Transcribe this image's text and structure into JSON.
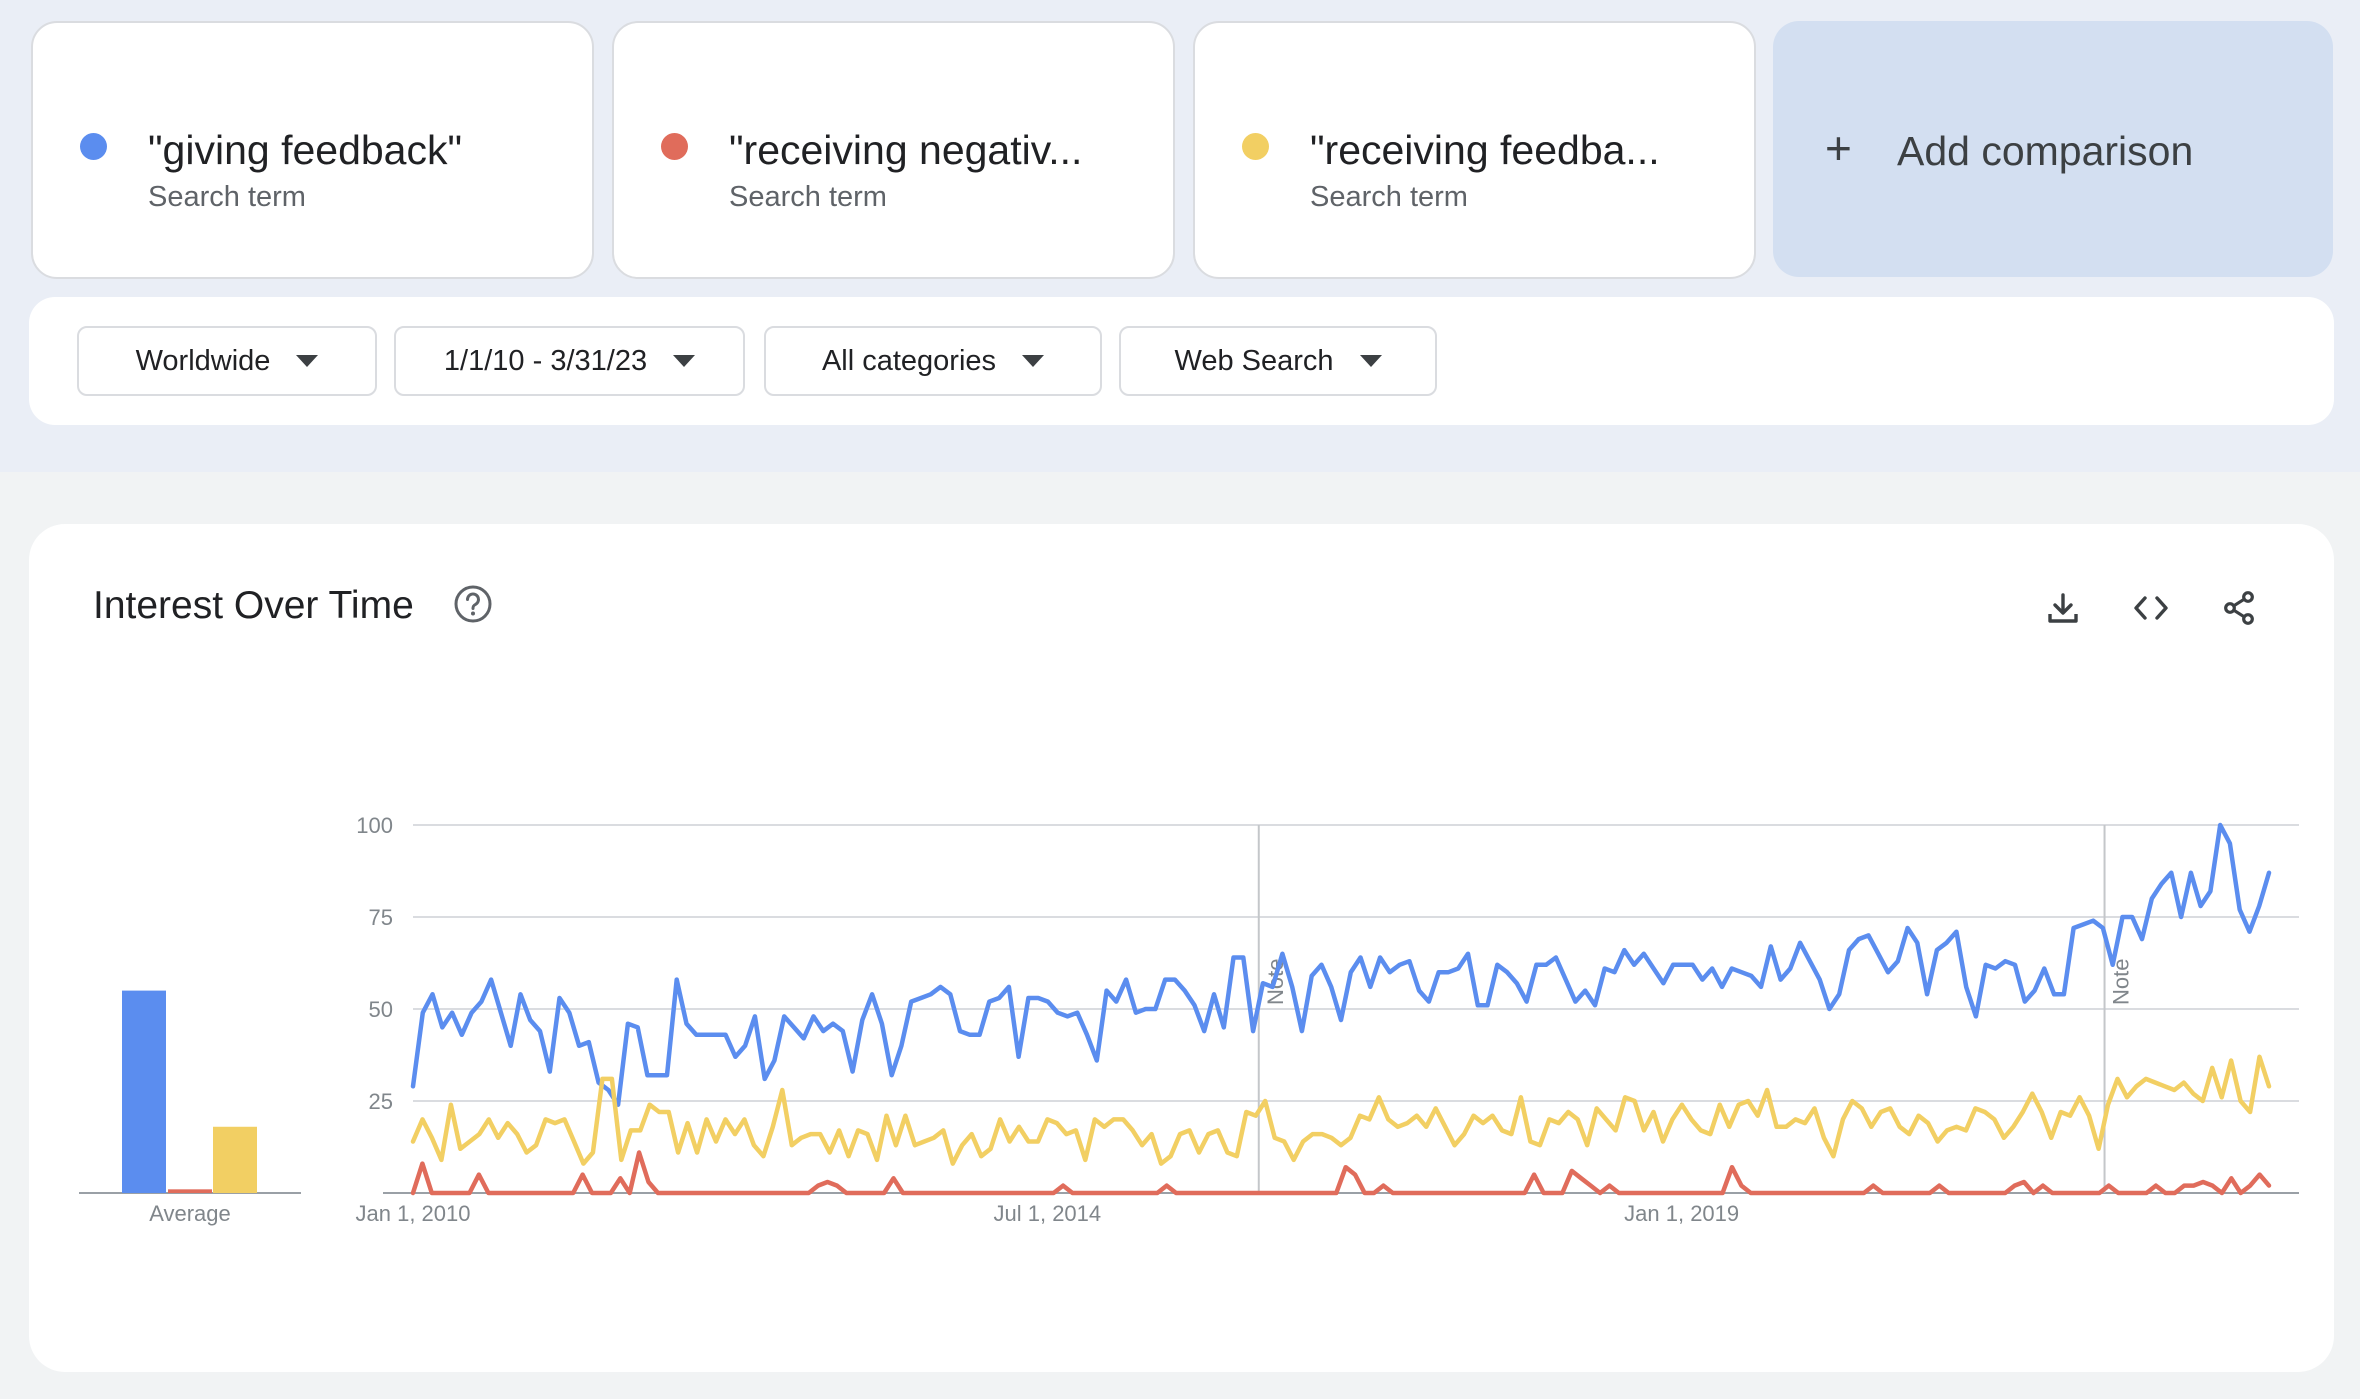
{
  "terms": [
    {
      "name": "\"giving feedback\"",
      "subtitle": "Search term",
      "color": "#5b8def"
    },
    {
      "name": "\"receiving negativ...",
      "subtitle": "Search term",
      "color": "#e06c5b"
    },
    {
      "name": "\"receiving feedba...",
      "subtitle": "Search term",
      "color": "#f2cf63"
    }
  ],
  "add_comparison": {
    "icon": "plus-icon",
    "label": "Add comparison"
  },
  "filters": {
    "region": "Worldwide",
    "date_range": "1/1/10 - 3/31/23",
    "category": "All categories",
    "search_type": "Web Search"
  },
  "panel": {
    "title": "Interest Over Time",
    "help_icon": "help-circle-icon",
    "tools": [
      "download-icon",
      "embed-code-icon",
      "share-icon"
    ]
  },
  "chart_data": {
    "type": "line",
    "title": "Interest Over Time",
    "ylim": [
      0,
      100
    ],
    "yticks": [
      100,
      75,
      50,
      25
    ],
    "xlim": [
      "2010-01",
      "2023-03"
    ],
    "xticks": [
      "Jan 1, 2010",
      "Jul 1, 2014",
      "Jan 1, 2019"
    ],
    "grid": true,
    "notes": [
      {
        "x": "2016-01",
        "label": "Note"
      },
      {
        "x": "2022-01",
        "label": "Note"
      }
    ],
    "average": {
      "label": "Average",
      "values": [
        55,
        1,
        18
      ]
    },
    "series": [
      {
        "name": "\"giving feedback\"",
        "color": "#5b8def",
        "values": [
          29,
          49,
          54,
          45,
          49,
          43,
          49,
          52,
          58,
          49,
          40,
          54,
          47,
          44,
          33,
          53,
          49,
          40,
          41,
          30,
          28,
          24,
          46,
          45,
          32,
          32,
          32,
          58,
          46,
          43,
          43,
          43,
          43,
          37,
          40,
          48,
          31,
          36,
          48,
          45,
          42,
          48,
          44,
          46,
          44,
          33,
          47,
          54,
          46,
          32,
          40,
          52,
          53,
          54,
          56,
          54,
          44,
          43,
          43,
          52,
          53,
          56,
          37,
          53,
          53,
          52,
          49,
          48,
          49,
          43,
          36,
          55,
          52,
          58,
          49,
          50,
          50,
          58,
          58,
          55,
          51,
          44,
          54,
          45,
          64,
          64,
          44,
          57,
          56,
          65,
          56,
          44,
          59,
          62,
          56,
          47,
          60,
          64,
          56,
          64,
          60,
          62,
          63,
          55,
          52,
          60,
          60,
          61,
          65,
          51,
          51,
          62,
          60,
          57,
          52,
          62,
          62,
          64,
          58,
          52,
          55,
          51,
          61,
          60,
          66,
          62,
          65,
          61,
          57,
          62,
          62,
          62,
          58,
          61,
          56,
          61,
          60,
          59,
          56,
          67,
          58,
          61,
          68,
          63,
          58,
          50,
          54,
          66,
          69,
          70,
          65,
          60,
          63,
          72,
          68,
          54,
          66,
          68,
          71,
          56,
          48,
          62,
          61,
          63,
          62,
          52,
          55,
          61,
          54,
          54,
          72,
          73,
          74,
          72,
          62,
          75,
          75,
          69,
          80,
          84,
          87,
          75,
          87,
          78,
          82,
          100,
          95,
          77,
          71,
          78,
          87
        ]
      },
      {
        "name": "\"receiving negativ...",
        "color": "#e06c5b",
        "values": [
          0,
          8,
          0,
          0,
          0,
          0,
          0,
          5,
          0,
          0,
          0,
          0,
          0,
          0,
          0,
          0,
          0,
          0,
          5,
          0,
          0,
          0,
          4,
          0,
          11,
          3,
          0,
          0,
          0,
          0,
          0,
          0,
          0,
          0,
          0,
          0,
          0,
          0,
          0,
          0,
          0,
          0,
          0,
          2,
          3,
          2,
          0,
          0,
          0,
          0,
          0,
          4,
          0,
          0,
          0,
          0,
          0,
          0,
          0,
          0,
          0,
          0,
          0,
          0,
          0,
          0,
          0,
          0,
          0,
          2,
          0,
          0,
          0,
          0,
          0,
          0,
          0,
          0,
          0,
          0,
          2,
          0,
          0,
          0,
          0,
          0,
          0,
          0,
          0,
          0,
          0,
          0,
          0,
          0,
          0,
          0,
          0,
          0,
          0,
          7,
          5,
          0,
          0,
          2,
          0,
          0,
          0,
          0,
          0,
          0,
          0,
          0,
          0,
          0,
          0,
          0,
          0,
          0,
          0,
          5,
          0,
          0,
          0,
          6,
          4,
          2,
          0,
          2,
          0,
          0,
          0,
          0,
          0,
          0,
          0,
          0,
          0,
          0,
          0,
          0,
          7,
          2,
          0,
          0,
          0,
          0,
          0,
          0,
          0,
          0,
          0,
          0,
          0,
          0,
          0,
          2,
          0,
          0,
          0,
          0,
          0,
          0,
          2,
          0,
          0,
          0,
          0,
          0,
          0,
          0,
          2,
          3,
          0,
          2,
          0,
          0,
          0,
          0,
          0,
          0,
          2,
          0,
          0,
          0,
          0,
          2,
          0,
          0,
          2,
          2,
          3,
          2,
          0,
          4,
          0,
          2,
          5,
          2
        ]
      },
      {
        "name": "\"receiving feedba...",
        "color": "#f2cf63",
        "values": [
          14,
          20,
          15,
          9,
          24,
          12,
          14,
          16,
          20,
          15,
          19,
          16,
          11,
          13,
          20,
          19,
          20,
          14,
          8,
          11,
          31,
          31,
          9,
          17,
          17,
          24,
          22,
          22,
          11,
          19,
          11,
          20,
          14,
          20,
          16,
          20,
          13,
          10,
          18,
          28,
          13,
          15,
          16,
          16,
          11,
          17,
          10,
          17,
          16,
          9,
          21,
          13,
          21,
          13,
          14,
          15,
          17,
          8,
          13,
          16,
          10,
          12,
          20,
          14,
          18,
          14,
          14,
          20,
          19,
          16,
          17,
          9,
          20,
          18,
          20,
          20,
          17,
          13,
          16,
          8,
          10,
          16,
          17,
          11,
          16,
          17,
          11,
          10,
          22,
          21,
          25,
          15,
          14,
          9,
          14,
          16,
          16,
          15,
          13,
          15,
          21,
          20,
          26,
          20,
          18,
          19,
          21,
          18,
          23,
          18,
          13,
          16,
          21,
          19,
          21,
          17,
          16,
          26,
          14,
          13,
          20,
          19,
          22,
          20,
          13,
          23,
          20,
          17,
          26,
          25,
          17,
          22,
          14,
          20,
          24,
          20,
          17,
          16,
          24,
          18,
          24,
          25,
          21,
          28,
          18,
          18,
          20,
          19,
          23,
          15,
          10,
          20,
          25,
          23,
          18,
          22,
          23,
          18,
          16,
          21,
          19,
          14,
          17,
          18,
          17,
          23,
          22,
          20,
          15,
          18,
          22,
          27,
          22,
          15,
          22,
          21,
          26,
          21,
          12,
          24,
          31,
          26,
          29,
          31,
          30,
          29,
          28,
          30,
          27,
          25,
          34,
          26,
          36,
          25,
          22,
          37,
          29
        ]
      }
    ]
  }
}
